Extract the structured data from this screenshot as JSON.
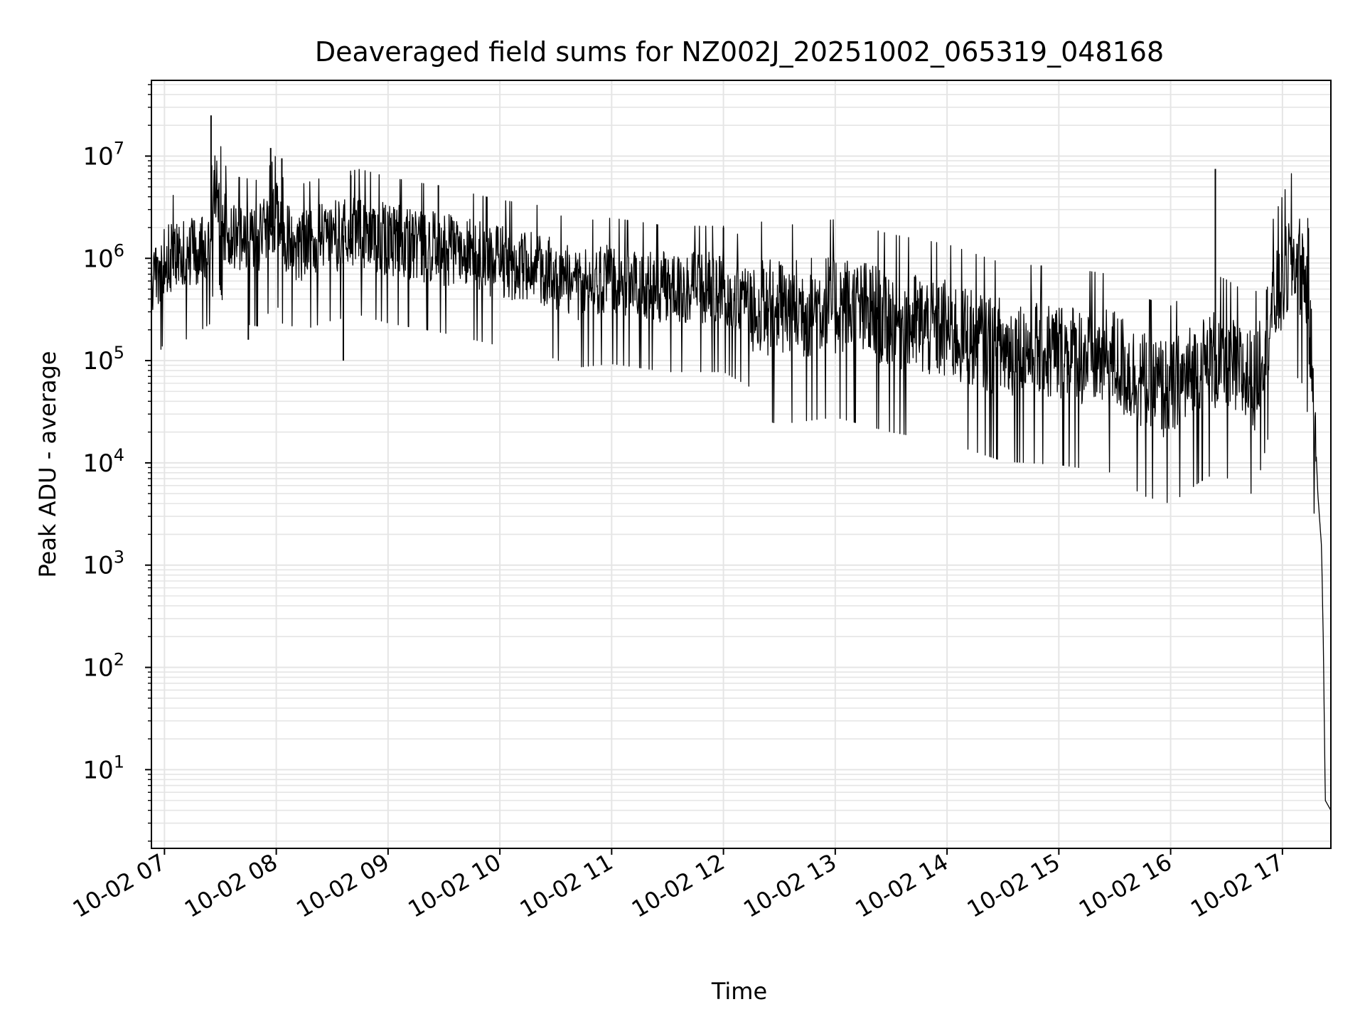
{
  "chart_data": {
    "type": "line",
    "title": "Deaveraged field sums for NZ002J_20251002_065319_048168",
    "xlabel": "Time",
    "ylabel": "Peak ADU - average",
    "yscale": "log",
    "ylim": [
      1.7,
      55000000
    ],
    "xlim": [
      "2025-10-02 06:53",
      "2025-10-02 17:26"
    ],
    "x_tick_labels": [
      "10-02 07",
      "10-02 08",
      "10-02 09",
      "10-02 10",
      "10-02 11",
      "10-02 12",
      "10-02 13",
      "10-02 14",
      "10-02 15",
      "10-02 16",
      "10-02 17"
    ],
    "x_tick_times": [
      "2025-10-02 07:00",
      "2025-10-02 08:00",
      "2025-10-02 09:00",
      "2025-10-02 10:00",
      "2025-10-02 11:00",
      "2025-10-02 12:00",
      "2025-10-02 13:00",
      "2025-10-02 14:00",
      "2025-10-02 15:00",
      "2025-10-02 16:00",
      "2025-10-02 17:00"
    ],
    "y_tick_labels": [
      {
        "base": "10",
        "exp": "1",
        "value": 10
      },
      {
        "base": "10",
        "exp": "2",
        "value": 100
      },
      {
        "base": "10",
        "exp": "3",
        "value": 1000
      },
      {
        "base": "10",
        "exp": "4",
        "value": 10000
      },
      {
        "base": "10",
        "exp": "5",
        "value": 100000
      },
      {
        "base": "10",
        "exp": "6",
        "value": 1000000
      },
      {
        "base": "10",
        "exp": "7",
        "value": 10000000
      }
    ],
    "grid": true,
    "legend": "none",
    "line_color": "#000000",
    "grid_color": "#e5e5e5",
    "series": [
      {
        "x": [
          "2025-10-02 06:53",
          "2025-10-02 07:00",
          "2025-10-02 07:10",
          "2025-10-02 07:20",
          "2025-10-02 07:25",
          "2025-10-02 07:27",
          "2025-10-02 07:29",
          "2025-10-02 07:32",
          "2025-10-02 07:40",
          "2025-10-02 07:50",
          "2025-10-02 07:57",
          "2025-10-02 08:00",
          "2025-10-02 08:03",
          "2025-10-02 08:15",
          "2025-10-02 08:30",
          "2025-10-02 08:45",
          "2025-10-02 09:00",
          "2025-10-02 09:30",
          "2025-10-02 10:00",
          "2025-10-02 10:20",
          "2025-10-02 10:40",
          "2025-10-02 11:00",
          "2025-10-02 11:30",
          "2025-10-02 12:00",
          "2025-10-02 12:15",
          "2025-10-02 12:30",
          "2025-10-02 13:00",
          "2025-10-02 13:30",
          "2025-10-02 14:00",
          "2025-10-02 14:30",
          "2025-10-02 15:00",
          "2025-10-02 15:30",
          "2025-10-02 15:45",
          "2025-10-02 16:00",
          "2025-10-02 16:15",
          "2025-10-02 16:24",
          "2025-10-02 16:30",
          "2025-10-02 16:45",
          "2025-10-02 16:55",
          "2025-10-02 17:05",
          "2025-10-02 17:12",
          "2025-10-02 17:14",
          "2025-10-02 17:17",
          "2025-10-02 17:19",
          "2025-10-02 17:21",
          "2025-10-02 17:22",
          "2025-10-02 17:23",
          "2025-10-02 17:26"
        ],
        "y": [
          500000,
          1000000,
          1000000,
          1300000,
          1500000,
          6000000,
          4000000,
          2000000,
          1500000,
          1400000,
          2000000,
          2500000,
          1500000,
          1300000,
          1600000,
          1800000,
          1500000,
          1200000,
          900000,
          800000,
          550000,
          600000,
          500000,
          500000,
          350000,
          300000,
          350000,
          250000,
          200000,
          130000,
          120000,
          100000,
          60000,
          50000,
          80000,
          100000,
          90000,
          60000,
          350000,
          1000000,
          700000,
          300000,
          40000,
          5000,
          1500,
          150,
          5,
          4
        ],
        "spikes": [
          {
            "x": "2025-10-02 07:25",
            "y": 25000000
          },
          {
            "x": "2025-10-02 07:57",
            "y": 12000000
          },
          {
            "x": "2025-10-02 08:03",
            "y": 9500000
          },
          {
            "x": "2025-10-02 08:40",
            "y": 6500000
          },
          {
            "x": "2025-10-02 09:27",
            "y": 5200000
          },
          {
            "x": "2025-10-02 12:00",
            "y": 2000000
          },
          {
            "x": "2025-10-02 16:24",
            "y": 7500000
          },
          {
            "x": "2025-10-02 08:36",
            "y": 100000
          },
          {
            "x": "2025-10-02 07:45",
            "y": 160000
          }
        ]
      }
    ]
  }
}
